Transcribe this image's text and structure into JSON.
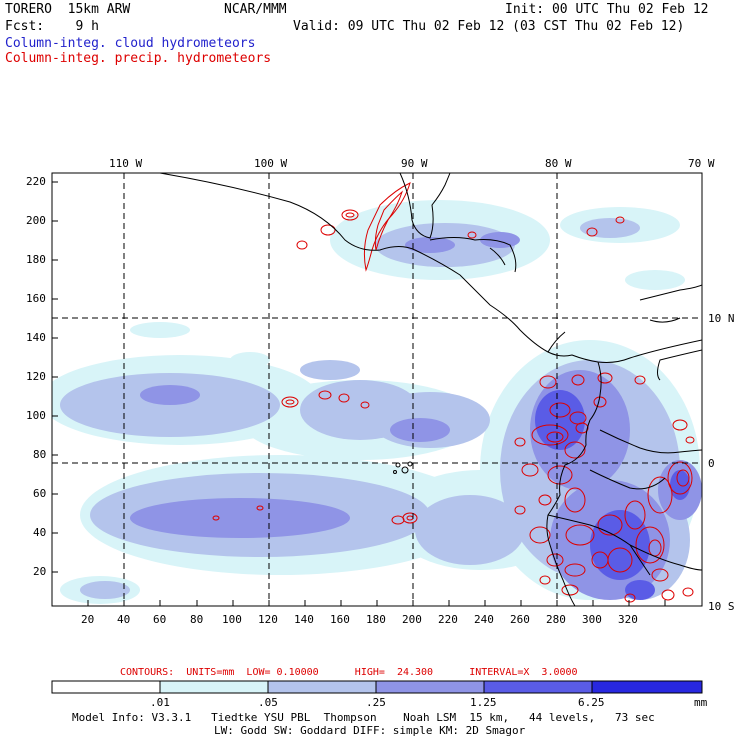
{
  "header": {
    "model": "TORERO  15km ARW",
    "org": "NCAR/MMM",
    "init": "Init: 00 UTC Thu 02 Feb 12",
    "fcst": "Fcst:    9 h",
    "valid": "Valid: 09 UTC Thu 02 Feb 12 (03 CST Thu 02 Feb 12)",
    "field1": "Column-integ. cloud hydrometeors",
    "field2": "Column-integ. precip. hydrometeors",
    "field1_color": "#2222cc",
    "field2_color": "#dd0000"
  },
  "map": {
    "lon_labels": [
      "110 W",
      "100 W",
      "90 W",
      "80 W",
      "70 W"
    ],
    "lat_labels": [
      "10 N",
      "0",
      "10 S"
    ],
    "y_ticks": [
      "220",
      "200",
      "180",
      "160",
      "140",
      "120",
      "100",
      "80",
      "60",
      "40",
      "20"
    ],
    "x_ticks": [
      "20",
      "40",
      "60",
      "80",
      "100",
      "120",
      "140",
      "160",
      "180",
      "200",
      "220",
      "240",
      "260",
      "280",
      "300",
      "320"
    ]
  },
  "contours": {
    "label": "CONTOURS:  UNITS=mm  LOW= 0.10000      HIGH=  24.300      INTERVAL=X  3.0000",
    "color": "#dd0000"
  },
  "colorbar": {
    "levels": [
      ".01",
      ".05",
      ".25",
      "1.25",
      "6.25"
    ],
    "unit": "mm",
    "colors": [
      "#ffffff",
      "#d8f4f8",
      "#b4c4ec",
      "#8f94e6",
      "#5a5ce6",
      "#2828e0"
    ]
  },
  "footer": {
    "line1": "Model Info: V3.3.1   Tiedtke YSU PBL  Thompson    Noah LSM  15 km,   44 levels,   73 sec",
    "line2": "LW: Godd SW: Goddard DIFF: simple KM: 2D Smagor"
  }
}
